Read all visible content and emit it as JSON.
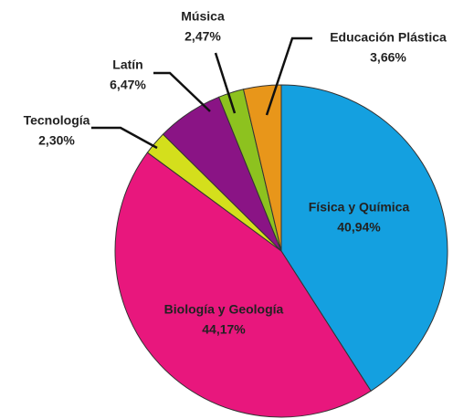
{
  "chart_data": {
    "type": "pie",
    "categories": [
      "Física y Química",
      "Biología y Geología",
      "Tecnología",
      "Latín",
      "Música",
      "Educación Plástica"
    ],
    "values": [
      40.94,
      44.17,
      2.3,
      6.47,
      2.47,
      3.66
    ],
    "value_labels": [
      "40,94%",
      "44,17%",
      "2,30%",
      "6,47%",
      "2,47%",
      "3,66%"
    ],
    "colors": [
      "#14a0e0",
      "#e8177d",
      "#d4df1c",
      "#8a1485",
      "#8dc21f",
      "#e8961a"
    ]
  }
}
